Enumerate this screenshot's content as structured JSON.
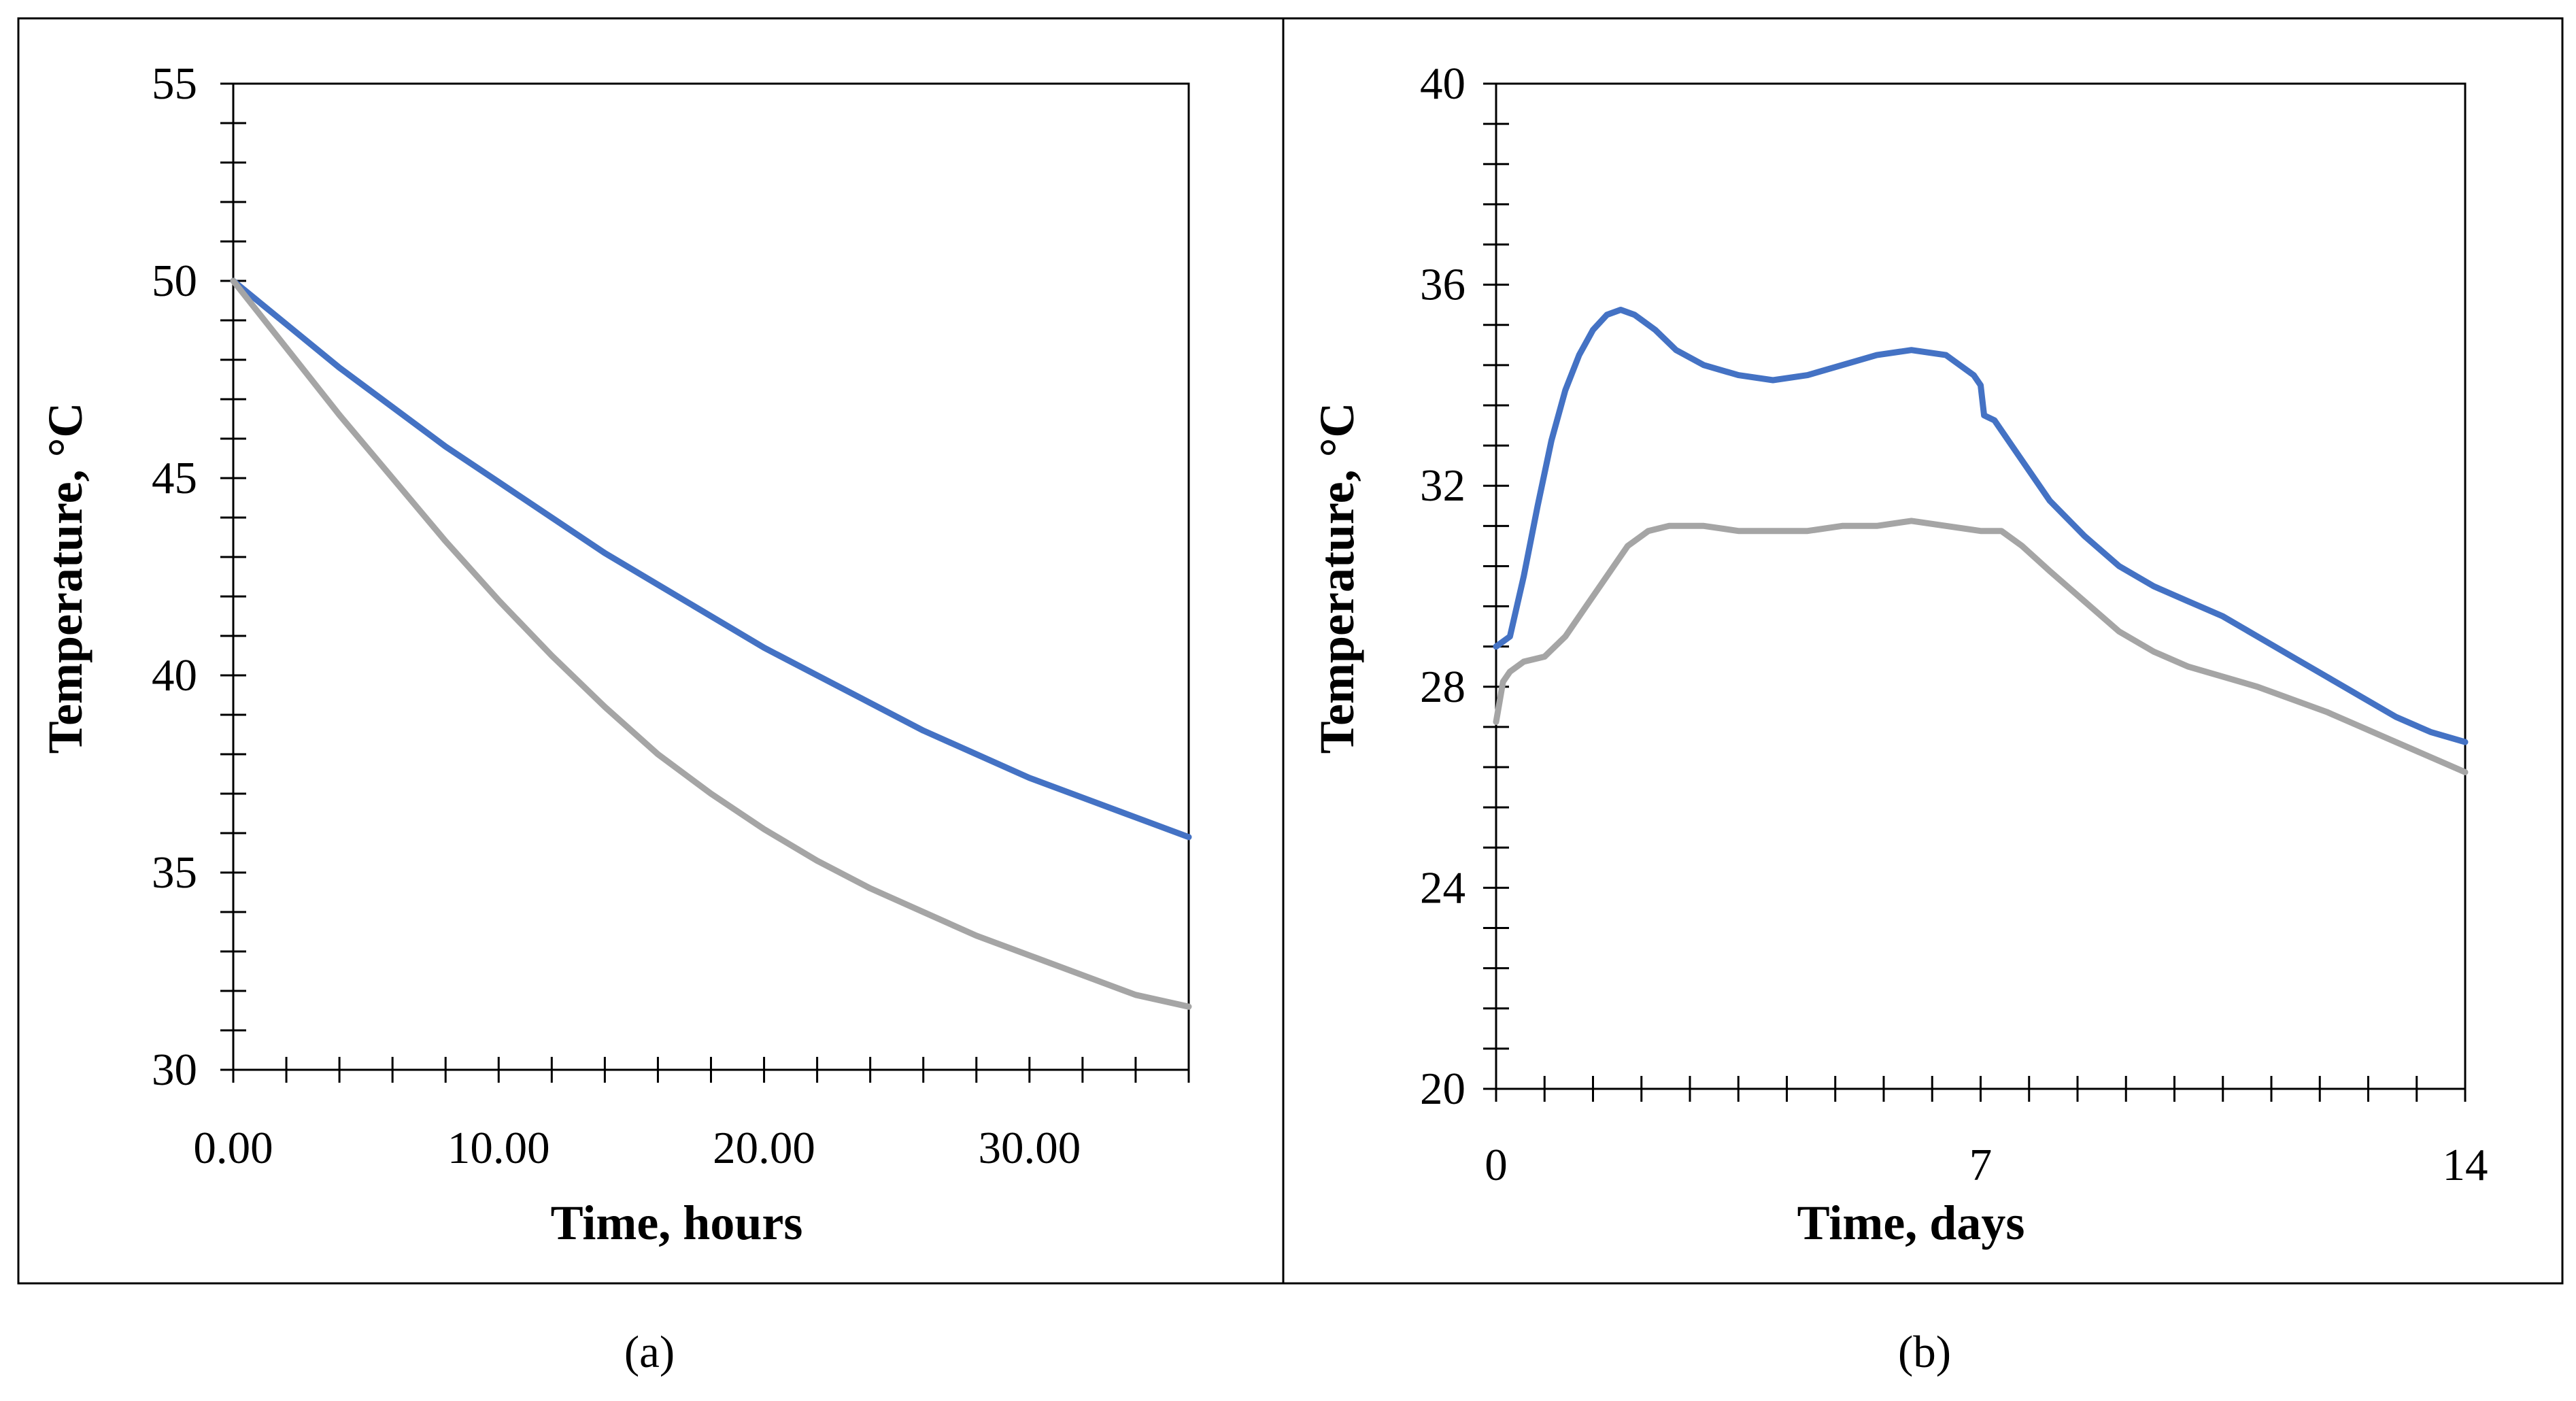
{
  "chart_data": [
    {
      "type": "line",
      "caption": "(a)",
      "xlabel": "Time, hours",
      "ylabel": "Temperature, °C",
      "xlim": [
        0,
        36
      ],
      "ylim": [
        30,
        55
      ],
      "x_ticks": [
        0,
        10,
        20,
        30
      ],
      "x_tick_labels": [
        "0.00",
        "10.00",
        "20.00",
        "30.00"
      ],
      "x_minor_step": 2,
      "y_ticks": [
        30,
        35,
        40,
        45,
        50,
        55
      ],
      "y_tick_labels": [
        "30",
        "35",
        "40",
        "45",
        "50",
        "55"
      ],
      "y_minor_step": 1,
      "grid": false,
      "legend": "none",
      "series": [
        {
          "name": "series-blue",
          "color": "#4472C4",
          "x": [
            0,
            2,
            4,
            6,
            8,
            10,
            12,
            14,
            16,
            18,
            20,
            22,
            24,
            26,
            28,
            30,
            32,
            34,
            36
          ],
          "y": [
            50.0,
            48.9,
            47.8,
            46.8,
            45.8,
            44.9,
            44.0,
            43.1,
            42.3,
            41.5,
            40.7,
            40.0,
            39.3,
            38.6,
            38.0,
            37.4,
            36.9,
            36.4,
            35.9
          ]
        },
        {
          "name": "series-gray",
          "color": "#A5A5A5",
          "x": [
            0,
            2,
            4,
            6,
            8,
            10,
            12,
            14,
            16,
            18,
            20,
            22,
            24,
            26,
            28,
            30,
            32,
            34,
            36
          ],
          "y": [
            50.0,
            48.3,
            46.6,
            45.0,
            43.4,
            41.9,
            40.5,
            39.2,
            38.0,
            37.0,
            36.1,
            35.3,
            34.6,
            34.0,
            33.4,
            32.9,
            32.4,
            31.9,
            31.6
          ]
        }
      ]
    },
    {
      "type": "line",
      "caption": "(b)",
      "xlabel": "Time, days",
      "ylabel": "Temperature, °C",
      "xlim": [
        0,
        14
      ],
      "ylim": [
        20,
        40
      ],
      "x_ticks": [
        0,
        7,
        14
      ],
      "x_tick_labels": [
        "0",
        "7",
        "14"
      ],
      "x_minor_step": 0.7,
      "y_ticks": [
        20,
        24,
        28,
        32,
        36,
        40
      ],
      "y_tick_labels": [
        "20",
        "24",
        "28",
        "32",
        "36",
        "40"
      ],
      "y_minor_step": 0.8,
      "grid": false,
      "legend": "none",
      "series": [
        {
          "name": "series-blue",
          "color": "#4472C4",
          "x": [
            0,
            0.2,
            0.4,
            0.6,
            0.8,
            1.0,
            1.2,
            1.4,
            1.6,
            1.8,
            2.0,
            2.3,
            2.6,
            3.0,
            3.5,
            4.0,
            4.5,
            5.0,
            5.5,
            6.0,
            6.5,
            6.9,
            7.0,
            7.05,
            7.2,
            7.5,
            8.0,
            8.5,
            9.0,
            9.5,
            10.0,
            10.5,
            11.0,
            11.5,
            12.0,
            12.5,
            13.0,
            13.5,
            14.0
          ],
          "y": [
            28.8,
            29.0,
            30.2,
            31.6,
            32.9,
            33.9,
            34.6,
            35.1,
            35.4,
            35.5,
            35.4,
            35.1,
            34.7,
            34.4,
            34.2,
            34.1,
            34.2,
            34.4,
            34.6,
            34.7,
            34.6,
            34.2,
            34.0,
            33.4,
            33.3,
            32.7,
            31.7,
            31.0,
            30.4,
            30.0,
            29.7,
            29.4,
            29.0,
            28.6,
            28.2,
            27.8,
            27.4,
            27.1,
            26.9
          ]
        },
        {
          "name": "series-gray",
          "color": "#A5A5A5",
          "x": [
            0,
            0.1,
            0.2,
            0.4,
            0.7,
            1.0,
            1.3,
            1.6,
            1.9,
            2.2,
            2.5,
            2.8,
            3.0,
            3.5,
            4.0,
            4.5,
            5.0,
            5.5,
            6.0,
            6.5,
            7.0,
            7.3,
            7.6,
            8.0,
            8.5,
            9.0,
            9.5,
            10.0,
            11.0,
            12.0,
            13.0,
            14.0
          ],
          "y": [
            27.3,
            28.1,
            28.3,
            28.5,
            28.6,
            29.0,
            29.6,
            30.2,
            30.8,
            31.1,
            31.2,
            31.2,
            31.2,
            31.1,
            31.1,
            31.1,
            31.2,
            31.2,
            31.3,
            31.2,
            31.1,
            31.1,
            30.8,
            30.3,
            29.7,
            29.1,
            28.7,
            28.4,
            28.0,
            27.5,
            26.9,
            26.3
          ]
        }
      ]
    }
  ]
}
